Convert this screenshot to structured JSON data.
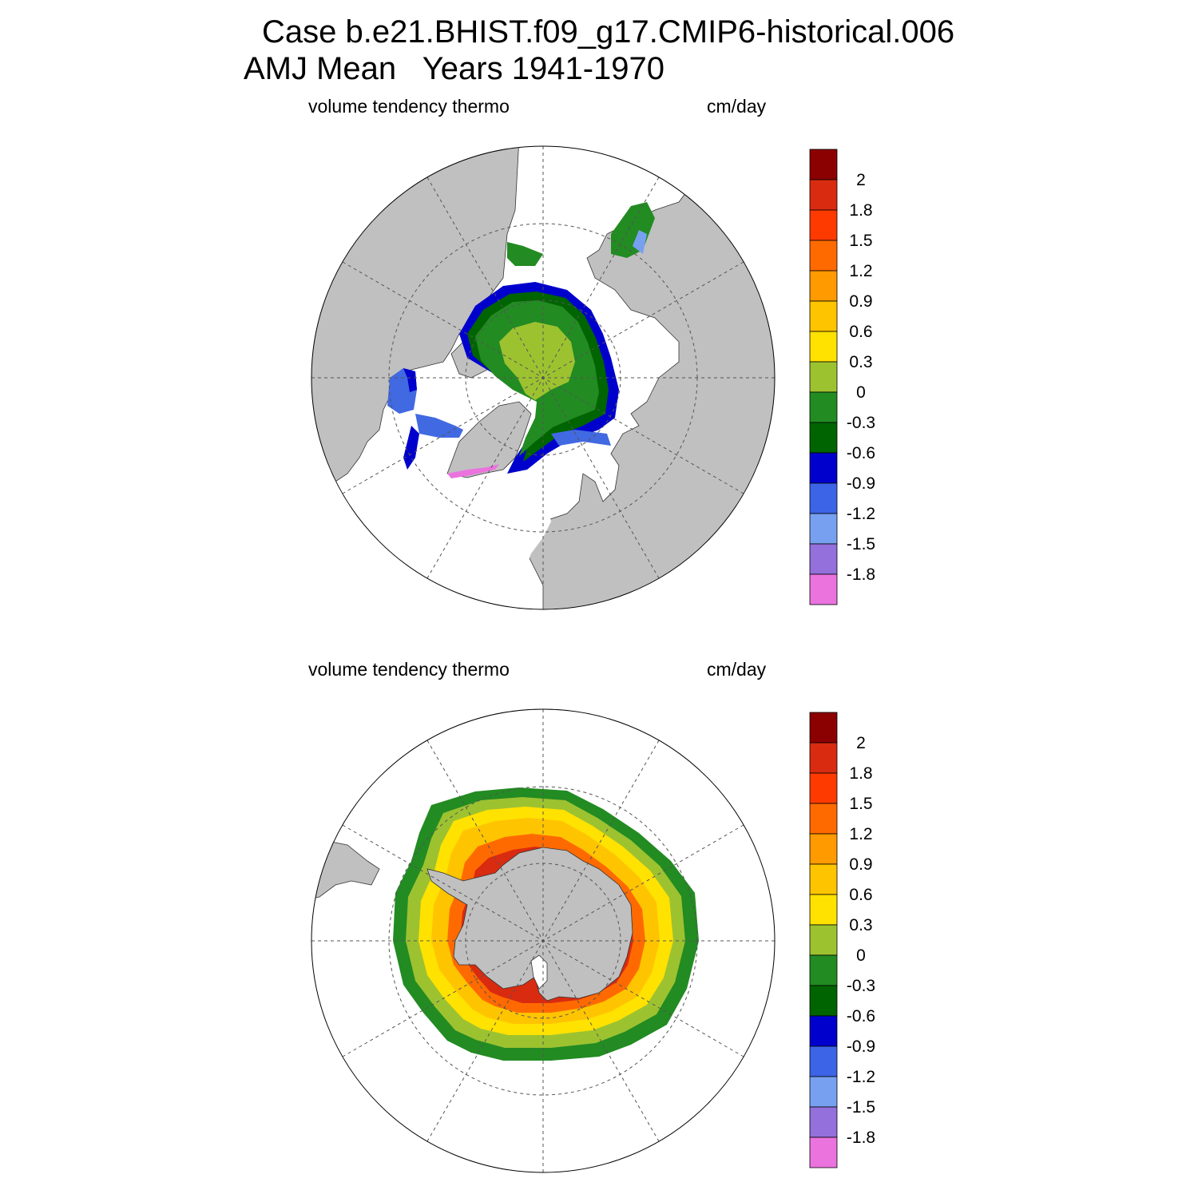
{
  "title": {
    "line1": "Case b.e21.BHIST.f09_g17.CMIP6-historical.006",
    "line2": "AMJ Mean   Years 1941-1970"
  },
  "panels": [
    {
      "id": "north",
      "hemisphere": "Northern",
      "left_label": "volume tendency thermo",
      "right_label": "cm/day"
    },
    {
      "id": "south",
      "hemisphere": "Southern",
      "left_label": "volume tendency thermo",
      "right_label": "cm/day"
    }
  ],
  "colorbar": {
    "labels": [
      "2",
      "1.8",
      "1.5",
      "1.2",
      "0.9",
      "0.6",
      "0.3",
      "0",
      "-0.3",
      "-0.6",
      "-0.9",
      "-1.2",
      "-1.5",
      "-1.8"
    ],
    "colors": [
      "#8b0000",
      "#d92b10",
      "#ff3a00",
      "#ff6a00",
      "#ff9a00",
      "#ffc400",
      "#ffe200",
      "#9dc230",
      "#228b22",
      "#006400",
      "#0000cd",
      "#3c64e6",
      "#78a0f0",
      "#9370db",
      "#ea73de"
    ]
  },
  "map_colors": {
    "land": "#c0c0c0",
    "ocean": "#ffffff",
    "grid": "#555555"
  }
}
